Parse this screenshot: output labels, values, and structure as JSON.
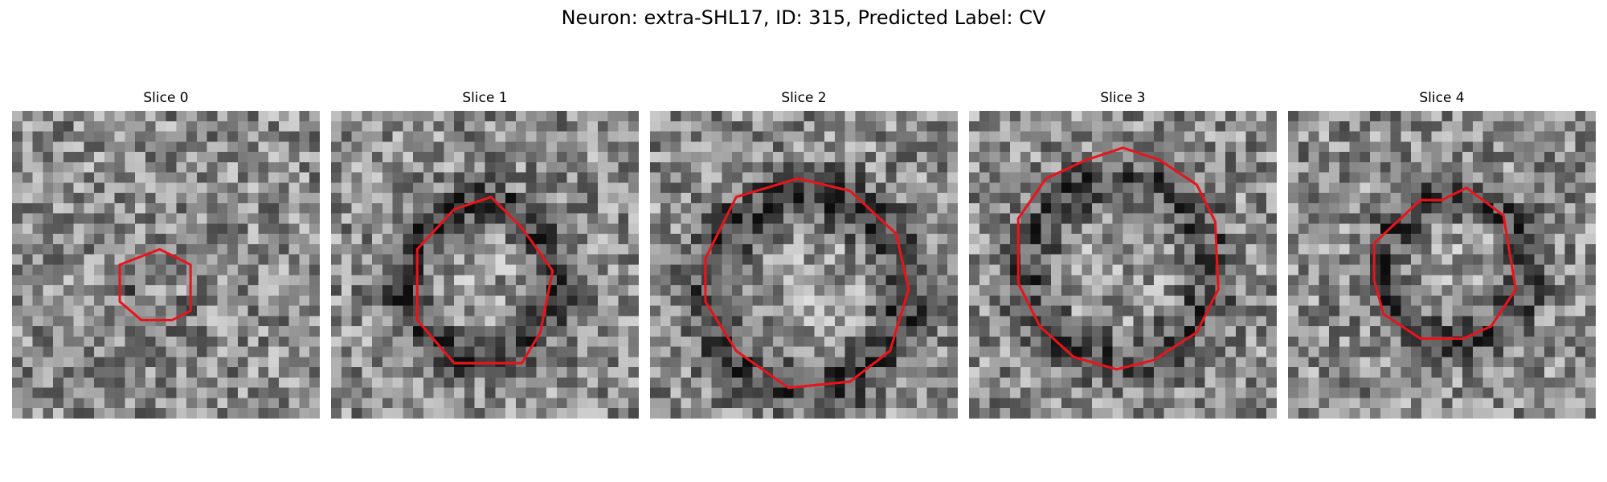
{
  "figure": {
    "title": "Neuron: extra-SHL17, ID: 315, Predicted Label: CV"
  },
  "contour_color": "#e8141c",
  "slices": [
    {
      "label": "Slice 0",
      "center": [
        0.48,
        0.57
      ],
      "radius": 0.12,
      "darkness": 0.15
    },
    {
      "label": "Slice 1",
      "center": [
        0.48,
        0.55
      ],
      "radius": 0.27,
      "darkness": 0.35
    },
    {
      "label": "Slice 2",
      "center": [
        0.51,
        0.59
      ],
      "radius": 0.35,
      "darkness": 0.3
    },
    {
      "label": "Slice 3",
      "center": [
        0.49,
        0.52
      ],
      "radius": 0.33,
      "darkness": 0.25
    },
    {
      "label": "Slice 4",
      "center": [
        0.54,
        0.51
      ],
      "radius": 0.26,
      "darkness": 0.3
    }
  ]
}
